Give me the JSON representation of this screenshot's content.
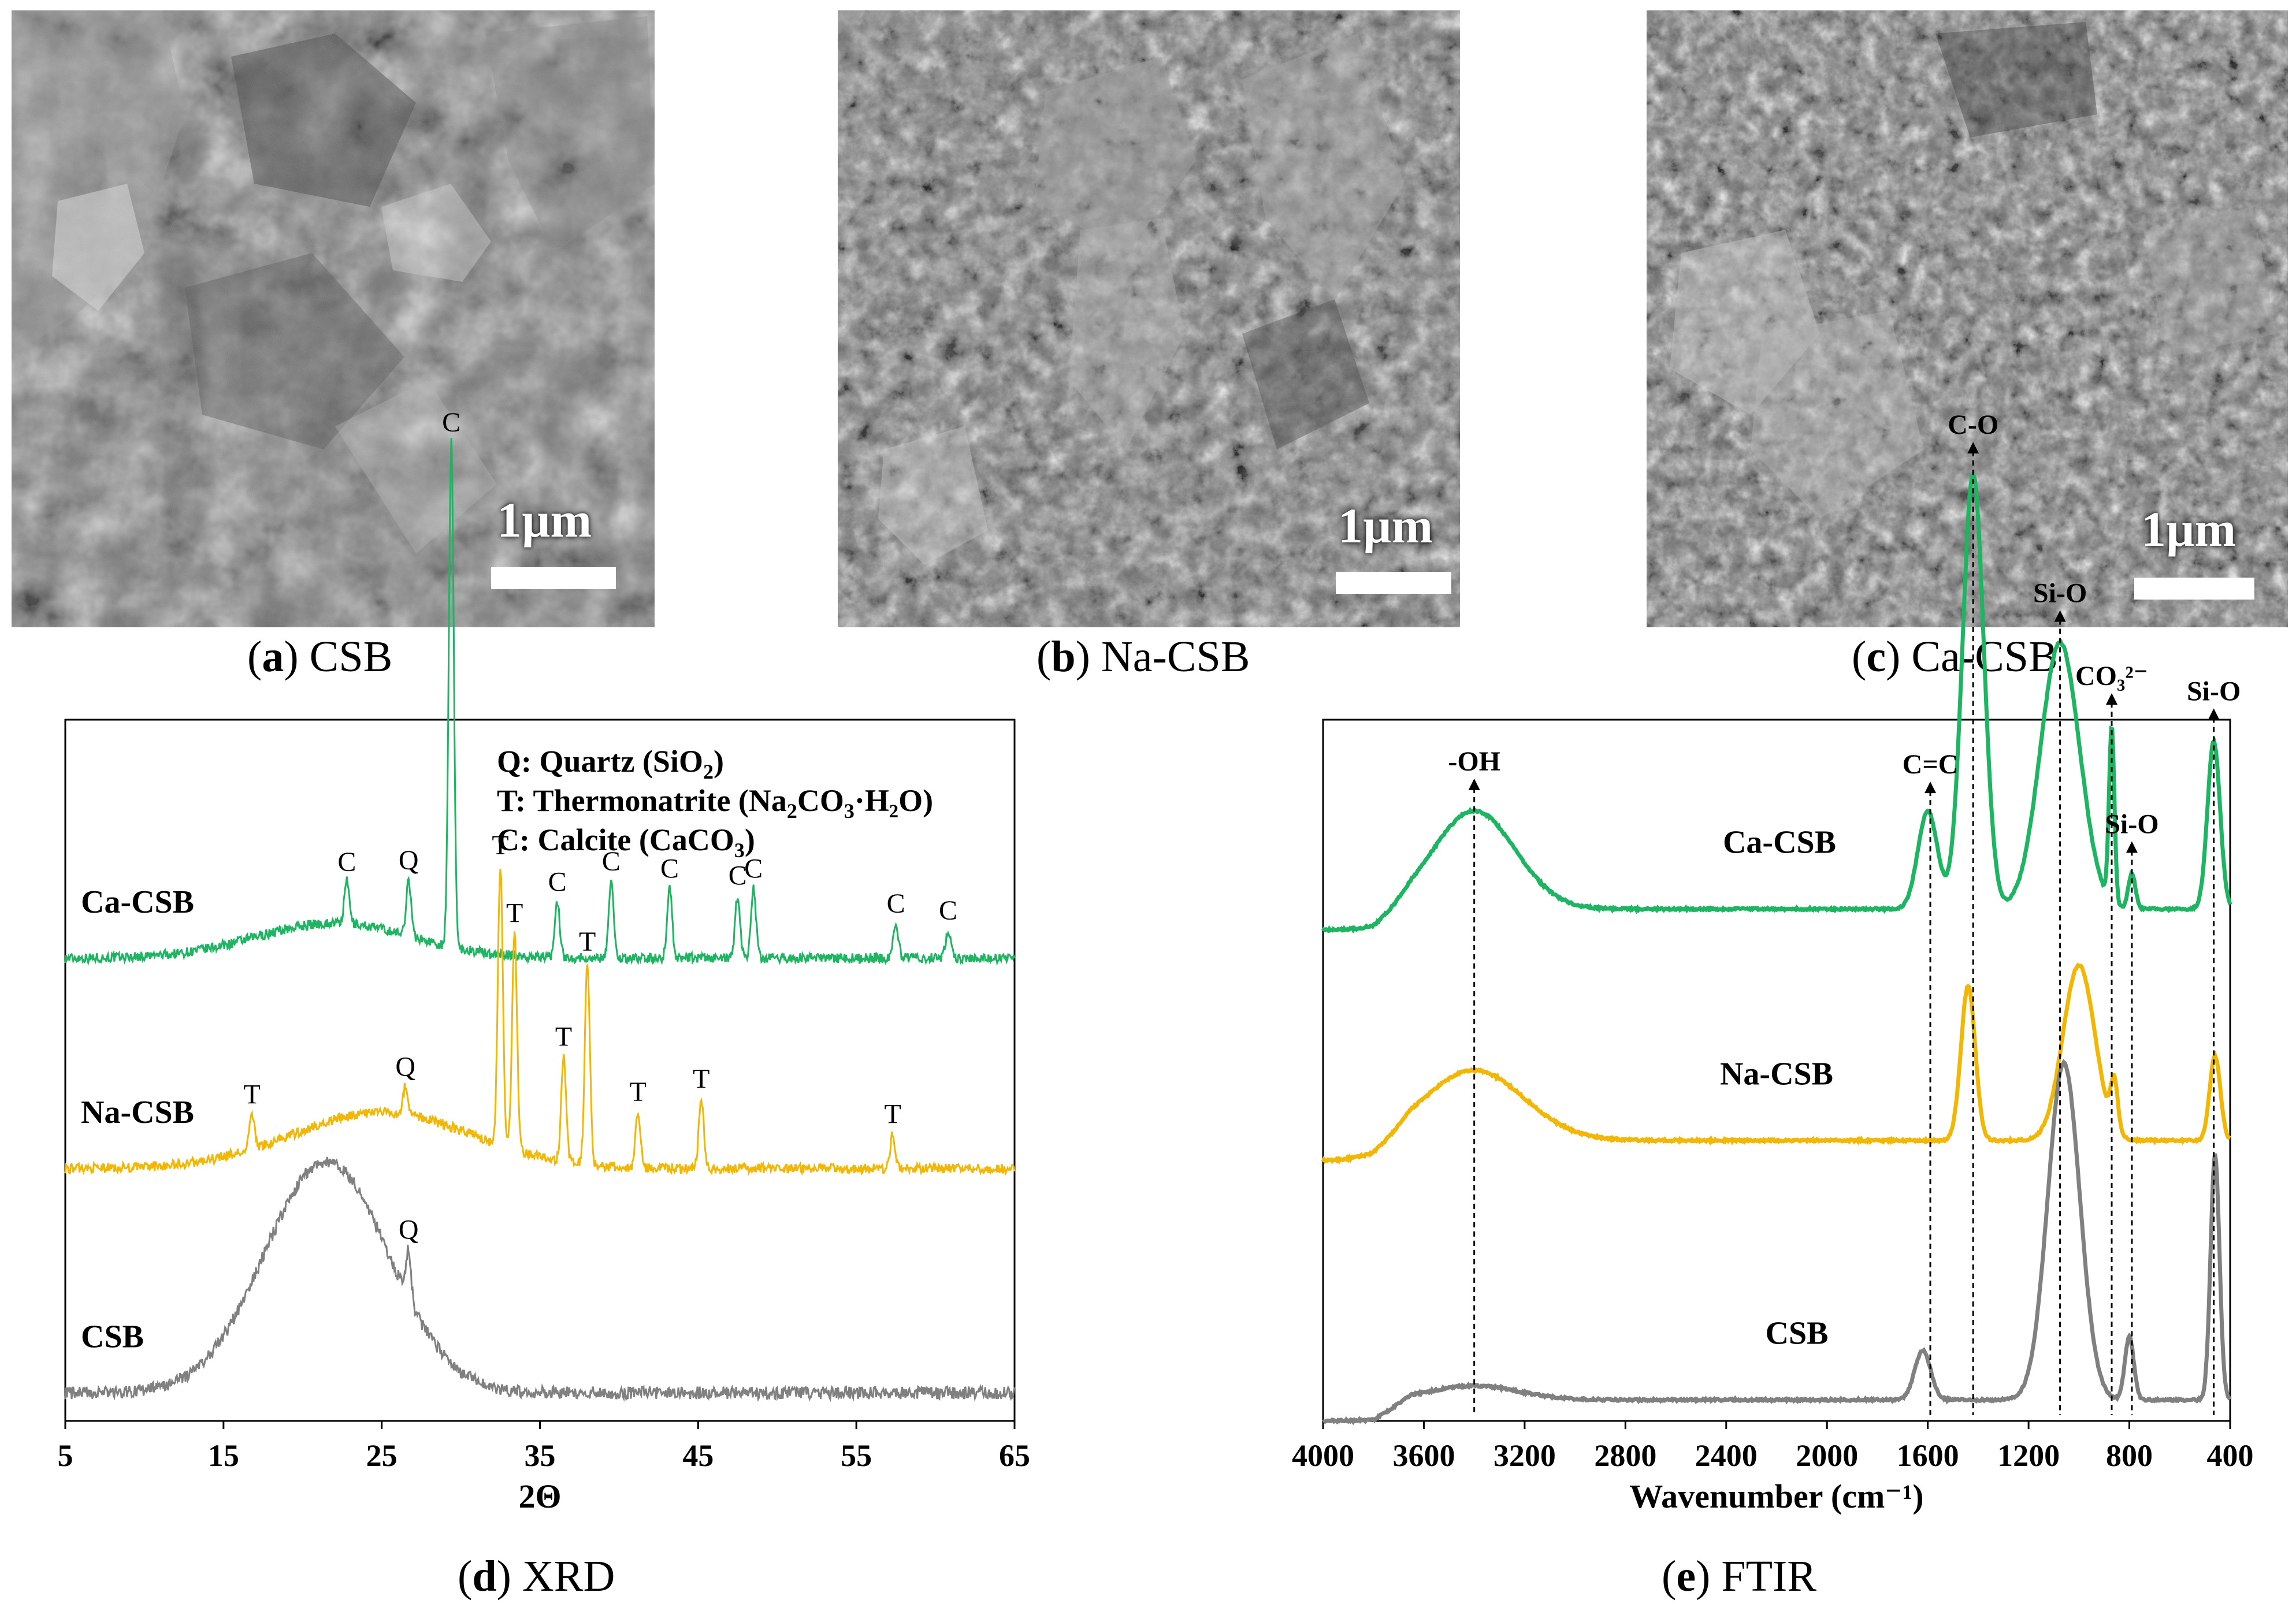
{
  "panels": [
    {
      "letter": "a",
      "name": "CSB"
    },
    {
      "letter": "b",
      "name": "Na-CSB"
    },
    {
      "letter": "c",
      "name": "Ca-CSB"
    },
    {
      "letter": "d",
      "name": "XRD"
    },
    {
      "letter": "e",
      "name": "FTIR"
    }
  ],
  "sem_scale_label": "1µm",
  "colors": {
    "ca_csb": "#1db462",
    "na_csb": "#f2b705",
    "csb": "#808080"
  },
  "chart_data": [
    {
      "type": "line",
      "title": "",
      "xlabel": "2Θ",
      "ylabel": "",
      "xlim": [
        5,
        65
      ],
      "xticks": [
        5,
        15,
        25,
        35,
        45,
        55,
        65
      ],
      "legend_lines": [
        {
          "prefix": "Q: Quartz (SiO",
          "sub": "2",
          "suffix": ")"
        },
        {
          "prefix": "T: Thermonatrite (Na",
          "sub": "2",
          "mid": "CO",
          "sub2": "3",
          "suffix": "·H₂O)"
        },
        {
          "prefix": "C: Calcite (CaCO",
          "sub": "3",
          "suffix": ")"
        }
      ],
      "series": [
        {
          "name": "Ca-CSB",
          "baseline": 0.66,
          "hump": [
            22,
            0.05,
            7
          ],
          "peaks": [
            [
              22.8,
              0.06,
              "C"
            ],
            [
              26.7,
              0.08,
              "Q"
            ],
            [
              29.4,
              0.72,
              "C"
            ],
            [
              36.1,
              0.08,
              "C"
            ],
            [
              39.5,
              0.11,
              "C"
            ],
            [
              43.2,
              0.1,
              "C"
            ],
            [
              47.5,
              0.09,
              "C"
            ],
            [
              48.5,
              0.1,
              "C"
            ],
            [
              57.5,
              0.05,
              "C"
            ],
            [
              60.8,
              0.04,
              "C"
            ]
          ]
        },
        {
          "name": "Na-CSB",
          "baseline": 0.36,
          "hump": [
            25,
            0.08,
            8
          ],
          "peaks": [
            [
              16.8,
              0.05,
              "T"
            ],
            [
              26.5,
              0.04,
              "Q"
            ],
            [
              32.5,
              0.4,
              "T"
            ],
            [
              33.4,
              0.31,
              "T"
            ],
            [
              36.5,
              0.15,
              "T"
            ],
            [
              38.0,
              0.29,
              "T"
            ],
            [
              41.2,
              0.08,
              "T"
            ],
            [
              45.2,
              0.1,
              "T"
            ],
            [
              57.3,
              0.05,
              "T"
            ]
          ]
        },
        {
          "name": "CSB",
          "baseline": 0.04,
          "hump": [
            21.5,
            0.33,
            5.5
          ],
          "peaks": [
            [
              26.7,
              0.07,
              "Q"
            ]
          ]
        }
      ]
    },
    {
      "type": "line",
      "title": "",
      "xlabel": "Wavenumber (cm⁻¹)",
      "ylabel": "",
      "xlim": [
        4000,
        400
      ],
      "xticks": [
        4000,
        3600,
        3200,
        2800,
        2400,
        2000,
        1600,
        1200,
        800,
        400
      ],
      "annotations": [
        {
          "text": "-OH",
          "x": 3400
        },
        {
          "text": "C=C",
          "x": 1590
        },
        {
          "text": "C-O",
          "x": 1420
        },
        {
          "text": "Si-O",
          "x": 1075
        },
        {
          "text": "CO₃²⁻",
          "x": 870
        },
        {
          "text": "Si-O",
          "x": 790
        },
        {
          "text": "Si-O",
          "x": 465
        }
      ],
      "series": [
        {
          "name": "Ca-CSB",
          "baseline": 0.73,
          "bands": [
            [
              3400,
              0.14,
              230
            ],
            [
              1600,
              0.14,
              55
            ],
            [
              1420,
              0.62,
              60
            ],
            [
              1075,
              0.38,
              110
            ],
            [
              870,
              0.25,
              15
            ],
            [
              790,
              0.05,
              20
            ],
            [
              465,
              0.24,
              35
            ]
          ]
        },
        {
          "name": "Na-CSB",
          "baseline": 0.4,
          "bands": [
            [
              3400,
              0.1,
              280
            ],
            [
              1440,
              0.22,
              40
            ],
            [
              1000,
              0.25,
              90
            ],
            [
              860,
              0.07,
              20
            ],
            [
              460,
              0.12,
              30
            ]
          ]
        },
        {
          "name": "CSB",
          "baseline": 0.03,
          "bands": [
            [
              3400,
              0.02,
              250
            ],
            [
              1620,
              0.07,
              45
            ],
            [
              1060,
              0.48,
              90
            ],
            [
              800,
              0.09,
              25
            ],
            [
              460,
              0.35,
              25
            ]
          ]
        }
      ]
    }
  ]
}
